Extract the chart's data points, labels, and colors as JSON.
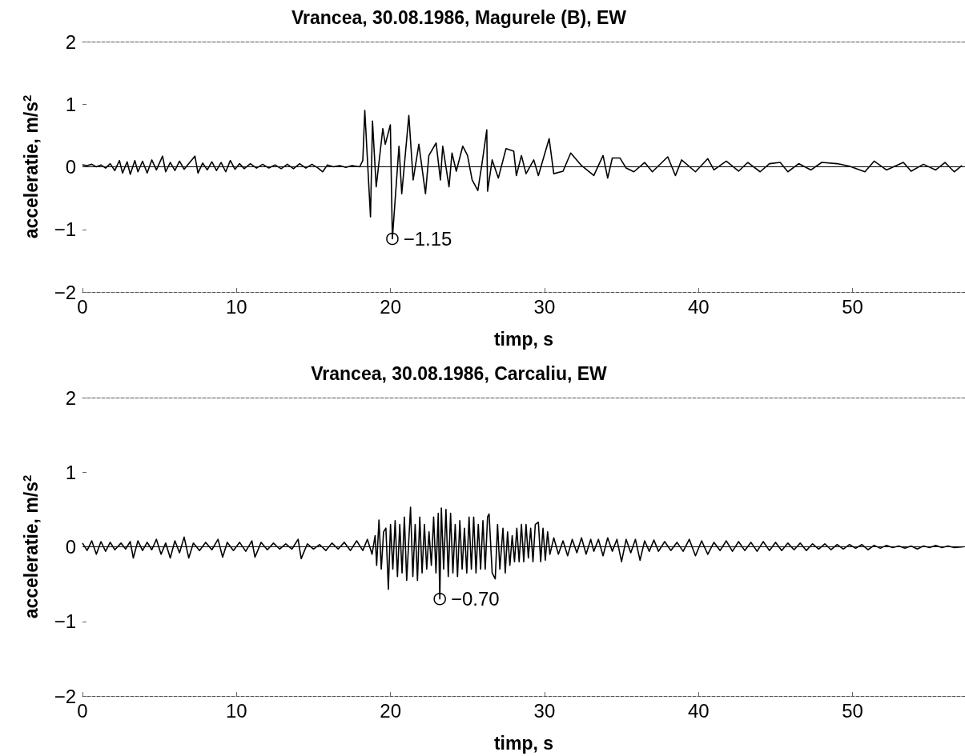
{
  "chart_data": [
    {
      "type": "line",
      "title": "Vrancea, 30.08.1986, Magurele (B), EW",
      "xlabel": "timp, s",
      "ylabel": "acceleratie, m/s$^{2}$",
      "color": "#000000",
      "marker": "none",
      "line_style": "solid",
      "grid": false,
      "legend": false,
      "xlim": [
        0,
        57.3
      ],
      "xticks": [
        0,
        10,
        20,
        30,
        40,
        50
      ],
      "ylim": [
        -2,
        2
      ],
      "yticks": [
        -2,
        -1,
        0,
        1,
        2
      ],
      "ref_lines": [
        {
          "axis": "y",
          "value": 0,
          "color": "#000000"
        }
      ],
      "annotations": [
        {
          "text": "−1.15",
          "x": 20.12,
          "y": -1.15
        }
      ],
      "x": [
        0,
        0.3,
        0.6,
        0.9,
        1.2,
        1.5,
        1.8,
        2.1,
        2.4,
        2.6,
        2.9,
        3.1,
        3.4,
        3.6,
        3.9,
        4.2,
        4.5,
        4.8,
        5.2,
        5.4,
        5.7,
        6.0,
        6.3,
        6.6,
        6.9,
        7.3,
        7.5,
        7.8,
        8.1,
        8.4,
        8.7,
        9.0,
        9.3,
        9.6,
        9.9,
        10.2,
        10.5,
        10.9,
        11.3,
        11.7,
        12.1,
        12.5,
        12.9,
        13.3,
        13.7,
        14.1,
        14.5,
        14.9,
        15.3,
        15.6,
        15.9,
        16.3,
        16.7,
        17.1,
        17.5,
        18.0,
        18.2,
        18.33,
        18.7,
        18.83,
        19.07,
        19.5,
        19.66,
        19.99,
        20.12,
        20.55,
        20.73,
        21.19,
        21.47,
        21.84,
        22.27,
        22.49,
        22.96,
        23.24,
        23.39,
        23.8,
        23.99,
        24.27,
        24.69,
        25.0,
        25.3,
        25.67,
        25.95,
        26.25,
        26.3,
        26.6,
        27.0,
        27.5,
        28.0,
        28.17,
        28.5,
        28.8,
        29.3,
        29.6,
        30.3,
        30.6,
        31.2,
        31.7,
        32.4,
        33.2,
        33.8,
        34.1,
        34.4,
        34.9,
        35.3,
        35.8,
        36.5,
        37.0,
        38.0,
        38.5,
        38.9,
        39.8,
        40.6,
        41.0,
        41.8,
        42.6,
        43.2,
        44.0,
        44.6,
        45.3,
        45.8,
        46.5,
        47.3,
        48.0,
        49.0,
        49.8,
        50.8,
        51.4,
        52.2,
        53.3,
        53.8,
        54.6,
        55.4,
        56.0,
        56.6,
        57.1
      ],
      "values": [
        0.03,
        0.02,
        0.04,
        0.0,
        0.03,
        -0.02,
        0.05,
        -0.06,
        0.1,
        -0.1,
        0.08,
        -0.12,
        0.1,
        -0.08,
        0.09,
        -0.1,
        0.11,
        -0.05,
        0.17,
        -0.08,
        0.07,
        -0.06,
        0.09,
        -0.04,
        0.05,
        0.17,
        -0.1,
        0.06,
        -0.05,
        0.08,
        -0.06,
        0.07,
        -0.08,
        0.1,
        -0.04,
        0.05,
        -0.03,
        0.05,
        -0.02,
        0.04,
        -0.02,
        0.03,
        -0.03,
        0.04,
        -0.03,
        0.05,
        -0.02,
        0.04,
        -0.02,
        -0.08,
        0.03,
        0.0,
        0.02,
        -0.01,
        0.02,
        0.0,
        0.1,
        0.9,
        -0.8,
        0.73,
        -0.32,
        0.61,
        0.36,
        0.67,
        -1.15,
        0.33,
        -0.43,
        0.82,
        -0.21,
        0.36,
        -0.43,
        0.18,
        0.38,
        -0.21,
        0.33,
        -0.32,
        0.22,
        -0.07,
        0.33,
        0.18,
        -0.21,
        -0.38,
        0.07,
        0.59,
        -0.39,
        0.11,
        -0.18,
        0.29,
        0.25,
        -0.14,
        0.18,
        -0.11,
        0.11,
        -0.14,
        0.45,
        -0.11,
        -0.07,
        0.22,
        0.02,
        -0.14,
        0.18,
        -0.18,
        0.14,
        0.14,
        -0.02,
        -0.08,
        0.07,
        -0.08,
        0.16,
        -0.14,
        0.11,
        -0.08,
        0.13,
        -0.05,
        0.09,
        -0.07,
        0.07,
        -0.08,
        0.05,
        0.07,
        -0.08,
        0.05,
        -0.05,
        0.07,
        0.05,
        0.01,
        -0.08,
        0.09,
        -0.05,
        0.07,
        -0.07,
        0.04,
        -0.05,
        0.07,
        -0.08,
        0.02
      ]
    },
    {
      "type": "line",
      "title": "Vrancea, 30.08.1986, Carcaliu, EW",
      "xlabel": "timp, s",
      "ylabel": "acceleratie, m/s$^{2}$",
      "color": "#000000",
      "marker": "none",
      "line_style": "solid",
      "grid": false,
      "legend": false,
      "xlim": [
        0,
        57.3
      ],
      "xticks": [
        0,
        10,
        20,
        30,
        40,
        50
      ],
      "ylim": [
        -2,
        2
      ],
      "yticks": [
        -2,
        -1,
        0,
        1,
        2
      ],
      "ref_lines": [
        {
          "axis": "y",
          "value": 0,
          "color": "#000000"
        }
      ],
      "annotations": [
        {
          "text": "−0.70",
          "x": 23.2,
          "y": -0.7
        }
      ],
      "x": [
        0,
        0.3,
        0.6,
        0.9,
        1.2,
        1.5,
        1.8,
        2.1,
        2.5,
        2.8,
        3.1,
        3.3,
        3.6,
        3.9,
        4.2,
        4.5,
        4.8,
        5.1,
        5.4,
        5.7,
        6.0,
        6.3,
        6.6,
        6.9,
        7.2,
        7.6,
        8.0,
        8.4,
        8.8,
        9.1,
        9.4,
        9.8,
        10.2,
        10.6,
        11.0,
        11.2,
        11.6,
        12.0,
        12.4,
        12.8,
        13.2,
        13.6,
        14.0,
        14.2,
        14.6,
        15.0,
        15.4,
        15.8,
        16.2,
        16.6,
        17.0,
        17.4,
        17.8,
        18.2,
        18.5,
        18.8,
        19.0,
        19.1,
        19.25,
        19.4,
        19.55,
        19.7,
        19.86,
        20.0,
        20.15,
        20.3,
        20.45,
        20.6,
        20.75,
        20.9,
        21.05,
        21.3,
        21.45,
        21.6,
        21.75,
        21.9,
        22.05,
        22.2,
        22.35,
        22.5,
        22.65,
        22.8,
        22.95,
        23.1,
        23.2,
        23.3,
        23.45,
        23.6,
        23.75,
        23.9,
        24.05,
        24.2,
        24.35,
        24.5,
        24.65,
        24.8,
        24.95,
        25.1,
        25.25,
        25.4,
        25.55,
        25.7,
        25.85,
        26.0,
        26.15,
        26.3,
        26.4,
        26.6,
        26.8,
        26.95,
        27.1,
        27.3,
        27.45,
        27.6,
        27.75,
        27.9,
        28.05,
        28.2,
        28.35,
        28.5,
        28.65,
        28.8,
        28.95,
        29.1,
        29.25,
        29.4,
        29.6,
        29.75,
        29.9,
        30.05,
        30.2,
        30.35,
        30.6,
        30.9,
        31.2,
        31.5,
        31.8,
        32.1,
        32.4,
        32.7,
        33.0,
        33.2,
        33.5,
        33.8,
        34.1,
        34.4,
        34.7,
        35.0,
        35.3,
        35.6,
        35.9,
        36.2,
        36.5,
        36.8,
        37.1,
        37.4,
        37.8,
        38.2,
        38.6,
        39.0,
        39.4,
        39.8,
        40.2,
        40.6,
        41.0,
        41.4,
        41.8,
        42.2,
        42.6,
        43.0,
        43.4,
        43.8,
        44.2,
        44.6,
        45.0,
        45.4,
        45.8,
        46.2,
        46.6,
        47.0,
        47.4,
        47.8,
        48.2,
        48.6,
        49.0,
        49.4,
        49.8,
        50.2,
        50.6,
        51.0,
        51.4,
        51.8,
        52.2,
        52.6,
        53.0,
        53.4,
        53.8,
        54.2,
        54.6,
        55.0,
        55.4,
        55.8,
        56.2,
        56.6,
        57.2
      ],
      "values": [
        0.05,
        -0.05,
        0.08,
        -0.1,
        0.07,
        -0.06,
        0.06,
        -0.04,
        0.05,
        -0.03,
        0.07,
        -0.15,
        0.08,
        -0.05,
        0.06,
        -0.04,
        0.1,
        -0.1,
        0.05,
        -0.15,
        0.08,
        -0.08,
        0.13,
        -0.15,
        0.05,
        -0.05,
        0.06,
        -0.04,
        0.1,
        -0.14,
        0.06,
        -0.05,
        0.06,
        -0.06,
        0.08,
        -0.14,
        0.06,
        -0.04,
        0.05,
        -0.03,
        0.04,
        -0.03,
        0.1,
        -0.16,
        0.04,
        -0.03,
        0.03,
        -0.05,
        0.05,
        -0.03,
        0.06,
        -0.05,
        0.08,
        -0.05,
        0.1,
        -0.1,
        0.15,
        -0.25,
        0.36,
        -0.3,
        0.2,
        0.25,
        -0.57,
        0.3,
        -0.3,
        0.35,
        -0.4,
        0.3,
        -0.35,
        0.4,
        -0.45,
        0.53,
        -0.4,
        0.3,
        -0.45,
        0.4,
        -0.35,
        0.3,
        -0.3,
        0.2,
        -0.25,
        0.4,
        -0.35,
        0.45,
        -0.7,
        0.52,
        -0.3,
        0.5,
        -0.4,
        0.45,
        -0.35,
        0.3,
        -0.4,
        0.35,
        -0.3,
        0.25,
        -0.35,
        0.4,
        -0.3,
        0.4,
        -0.35,
        0.3,
        -0.3,
        0.35,
        -0.3,
        0.4,
        0.44,
        -0.35,
        -0.43,
        0.3,
        -0.3,
        0.25,
        -0.35,
        0.2,
        -0.25,
        0.15,
        -0.2,
        0.25,
        -0.2,
        0.3,
        -0.2,
        0.3,
        -0.15,
        0.25,
        -0.2,
        0.3,
        0.33,
        -0.2,
        0.25,
        -0.18,
        0.2,
        -0.1,
        0.12,
        -0.1,
        0.08,
        -0.12,
        0.1,
        -0.08,
        0.12,
        -0.1,
        0.1,
        -0.06,
        0.1,
        -0.12,
        0.12,
        -0.06,
        0.1,
        -0.2,
        0.1,
        -0.08,
        0.1,
        -0.18,
        0.08,
        -0.06,
        0.09,
        -0.06,
        0.07,
        -0.05,
        0.06,
        -0.06,
        0.1,
        -0.12,
        0.08,
        -0.1,
        0.06,
        -0.05,
        0.08,
        -0.06,
        0.07,
        -0.05,
        0.06,
        -0.06,
        0.07,
        -0.05,
        0.06,
        -0.05,
        0.05,
        -0.04,
        0.05,
        -0.05,
        0.04,
        -0.03,
        0.04,
        -0.04,
        0.03,
        -0.03,
        0.03,
        -0.02,
        0.03,
        -0.04,
        0.02,
        -0.02,
        0.02,
        -0.01,
        0.01,
        -0.02,
        0.01,
        -0.03,
        0.01,
        -0.01,
        0.02,
        -0.01,
        0.01,
        -0.01,
        0.0
      ]
    }
  ]
}
